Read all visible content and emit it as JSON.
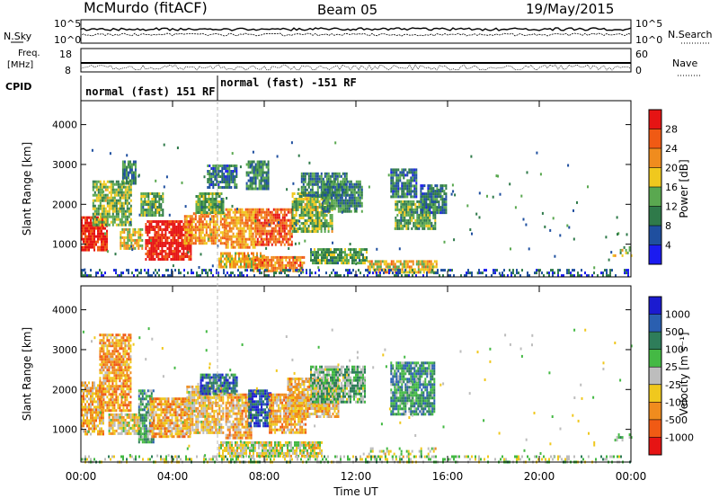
{
  "header": {
    "radar": "McMurdo (fitACF)",
    "beam": "Beam 05",
    "date": "19/May/2015"
  },
  "status_panels": {
    "nsky_label": "N.Sky",
    "nsearch_label": "N.Search",
    "freq_label_1": "Freq.",
    "freq_label_2": "[MHz]",
    "nave_label": "Nave",
    "cpid_label": "CPID",
    "left_ticks_top": [
      "10^5",
      "10^0"
    ],
    "right_ticks_top": [
      "10^5",
      "10^0"
    ],
    "left_ticks_freq": [
      "18",
      "8"
    ],
    "right_ticks_nave": [
      "60",
      "0"
    ],
    "cpid_segments": [
      "normal (fast) 151 RF",
      "normal (fast) -151 RF"
    ]
  },
  "axes": {
    "x_label": "Time UT",
    "x_ticks": [
      "00:00",
      "04:00",
      "08:00",
      "12:00",
      "16:00",
      "20:00",
      "00:00"
    ],
    "y_label": "Slant Range [km]",
    "y_ticks": [
      "1000",
      "2000",
      "3000",
      "4000"
    ]
  },
  "colorbars": {
    "power": {
      "label": "Power [dB]",
      "ticks": [
        "4",
        "8",
        "12",
        "16",
        "20",
        "24",
        "28"
      ],
      "colors": [
        "#1b1bf0",
        "#1f4f9f",
        "#2f7a4a",
        "#5aa850",
        "#f0c81e",
        "#f08c1e",
        "#f05a14",
        "#e61414"
      ]
    },
    "velocity": {
      "label": "Velocity [m s⁻¹]",
      "ticks": [
        "1000",
        "500",
        "100",
        "25",
        "-25",
        "-100",
        "-500",
        "-1000"
      ],
      "colors": [
        "#1b1bd0",
        "#2a5fb0",
        "#2e7d5a",
        "#44b944",
        "#bdbdbd",
        "#f0c81e",
        "#f08c1e",
        "#f05a14",
        "#e61414"
      ]
    }
  },
  "chart_data": [
    {
      "type": "heatmap",
      "name": "power",
      "xlabel": "Time UT",
      "ylabel": "Slant Range [km]",
      "xlim": [
        0,
        24
      ],
      "ylim": [
        180,
        4600
      ],
      "color_label": "Power [dB]",
      "clim": [
        0,
        30
      ],
      "regions": [
        {
          "t0": 0.0,
          "t1": 1.1,
          "r0": 850,
          "r1": 1700,
          "v": 28
        },
        {
          "t0": 0.5,
          "t1": 2.2,
          "r0": 1500,
          "r1": 2600,
          "v": 14
        },
        {
          "t0": 1.8,
          "t1": 2.4,
          "r0": 2500,
          "r1": 3100,
          "v": 10
        },
        {
          "t0": 1.7,
          "t1": 2.7,
          "r0": 900,
          "r1": 1400,
          "v": 18
        },
        {
          "t0": 2.6,
          "t1": 3.6,
          "r0": 1700,
          "r1": 2300,
          "v": 12
        },
        {
          "t0": 2.8,
          "t1": 4.8,
          "r0": 650,
          "r1": 1600,
          "v": 29
        },
        {
          "t0": 4.5,
          "t1": 6.3,
          "r0": 1000,
          "r1": 1800,
          "v": 20
        },
        {
          "t0": 5.0,
          "t1": 6.2,
          "r0": 1800,
          "r1": 2300,
          "v": 12
        },
        {
          "t0": 5.5,
          "t1": 6.8,
          "r0": 2400,
          "r1": 3000,
          "v": 8
        },
        {
          "t0": 6.0,
          "t1": 8.0,
          "r0": 400,
          "r1": 800,
          "v": 18
        },
        {
          "t0": 6.3,
          "t1": 7.6,
          "r0": 900,
          "r1": 1900,
          "v": 20
        },
        {
          "t0": 7.2,
          "t1": 8.2,
          "r0": 2400,
          "r1": 3100,
          "v": 10
        },
        {
          "t0": 7.6,
          "t1": 9.2,
          "r0": 1000,
          "r1": 1900,
          "v": 24
        },
        {
          "t0": 7.5,
          "t1": 9.7,
          "r0": 300,
          "r1": 700,
          "v": 22
        },
        {
          "t0": 9.2,
          "t1": 11.0,
          "r0": 1300,
          "r1": 2300,
          "v": 14
        },
        {
          "t0": 9.6,
          "t1": 11.6,
          "r0": 2200,
          "r1": 2800,
          "v": 9
        },
        {
          "t0": 10.5,
          "t1": 12.3,
          "r0": 1800,
          "r1": 2600,
          "v": 10
        },
        {
          "t0": 10.0,
          "t1": 12.5,
          "r0": 500,
          "r1": 900,
          "v": 12
        },
        {
          "t0": 13.7,
          "t1": 15.5,
          "r0": 1400,
          "r1": 2100,
          "v": 12
        },
        {
          "t0": 13.5,
          "t1": 14.6,
          "r0": 2200,
          "r1": 2900,
          "v": 8
        },
        {
          "t0": 14.8,
          "t1": 15.9,
          "r0": 1800,
          "r1": 2500,
          "v": 8
        },
        {
          "t0": 12.5,
          "t1": 15.5,
          "r0": 300,
          "r1": 600,
          "v": 18
        },
        {
          "t0": 0.0,
          "t1": 24.0,
          "r0": 200,
          "r1": 380,
          "v": 6
        },
        {
          "t0": 23.2,
          "t1": 24.0,
          "r0": 700,
          "r1": 950,
          "v": 14
        }
      ]
    },
    {
      "type": "heatmap",
      "name": "velocity",
      "xlabel": "Time UT",
      "ylabel": "Slant Range [km]",
      "xlim": [
        0,
        24
      ],
      "ylim": [
        180,
        4600
      ],
      "color_label": "Velocity [m s⁻¹]",
      "clim": [
        -1000,
        1000
      ],
      "regions": [
        {
          "t0": 0.0,
          "t1": 1.0,
          "r0": 900,
          "r1": 2200,
          "v": -300
        },
        {
          "t0": 0.8,
          "t1": 2.2,
          "r0": 1500,
          "r1": 3400,
          "v": -400
        },
        {
          "t0": 1.2,
          "t1": 2.6,
          "r0": 900,
          "r1": 1400,
          "v": -150
        },
        {
          "t0": 2.5,
          "t1": 3.2,
          "r0": 700,
          "r1": 2000,
          "v": 300
        },
        {
          "t0": 3.0,
          "t1": 4.8,
          "r0": 800,
          "r1": 1800,
          "v": -350
        },
        {
          "t0": 4.6,
          "t1": 6.2,
          "r0": 900,
          "r1": 2100,
          "v": -200
        },
        {
          "t0": 5.2,
          "t1": 6.8,
          "r0": 1900,
          "r1": 2400,
          "v": 600
        },
        {
          "t0": 6.3,
          "t1": 7.4,
          "r0": 800,
          "r1": 1900,
          "v": -300
        },
        {
          "t0": 7.3,
          "t1": 8.3,
          "r0": 1100,
          "r1": 2000,
          "v": 700
        },
        {
          "t0": 8.2,
          "t1": 9.8,
          "r0": 900,
          "r1": 1900,
          "v": -300
        },
        {
          "t0": 9.0,
          "t1": 11.2,
          "r0": 1300,
          "r1": 2300,
          "v": -250
        },
        {
          "t0": 10.0,
          "t1": 12.4,
          "r0": 1700,
          "r1": 2600,
          "v": 200
        },
        {
          "t0": 13.5,
          "t1": 15.4,
          "r0": 1400,
          "r1": 2700,
          "v": 400
        },
        {
          "t0": 6.0,
          "t1": 10.5,
          "r0": 300,
          "r1": 700,
          "v": -80
        },
        {
          "t0": 12.3,
          "t1": 15.5,
          "r0": 300,
          "r1": 550,
          "v": -60
        },
        {
          "t0": 0.0,
          "t1": 24.0,
          "r0": 200,
          "r1": 350,
          "v": 60
        },
        {
          "t0": 23.2,
          "t1": 24.0,
          "r0": 700,
          "r1": 900,
          "v": 200
        }
      ]
    }
  ]
}
